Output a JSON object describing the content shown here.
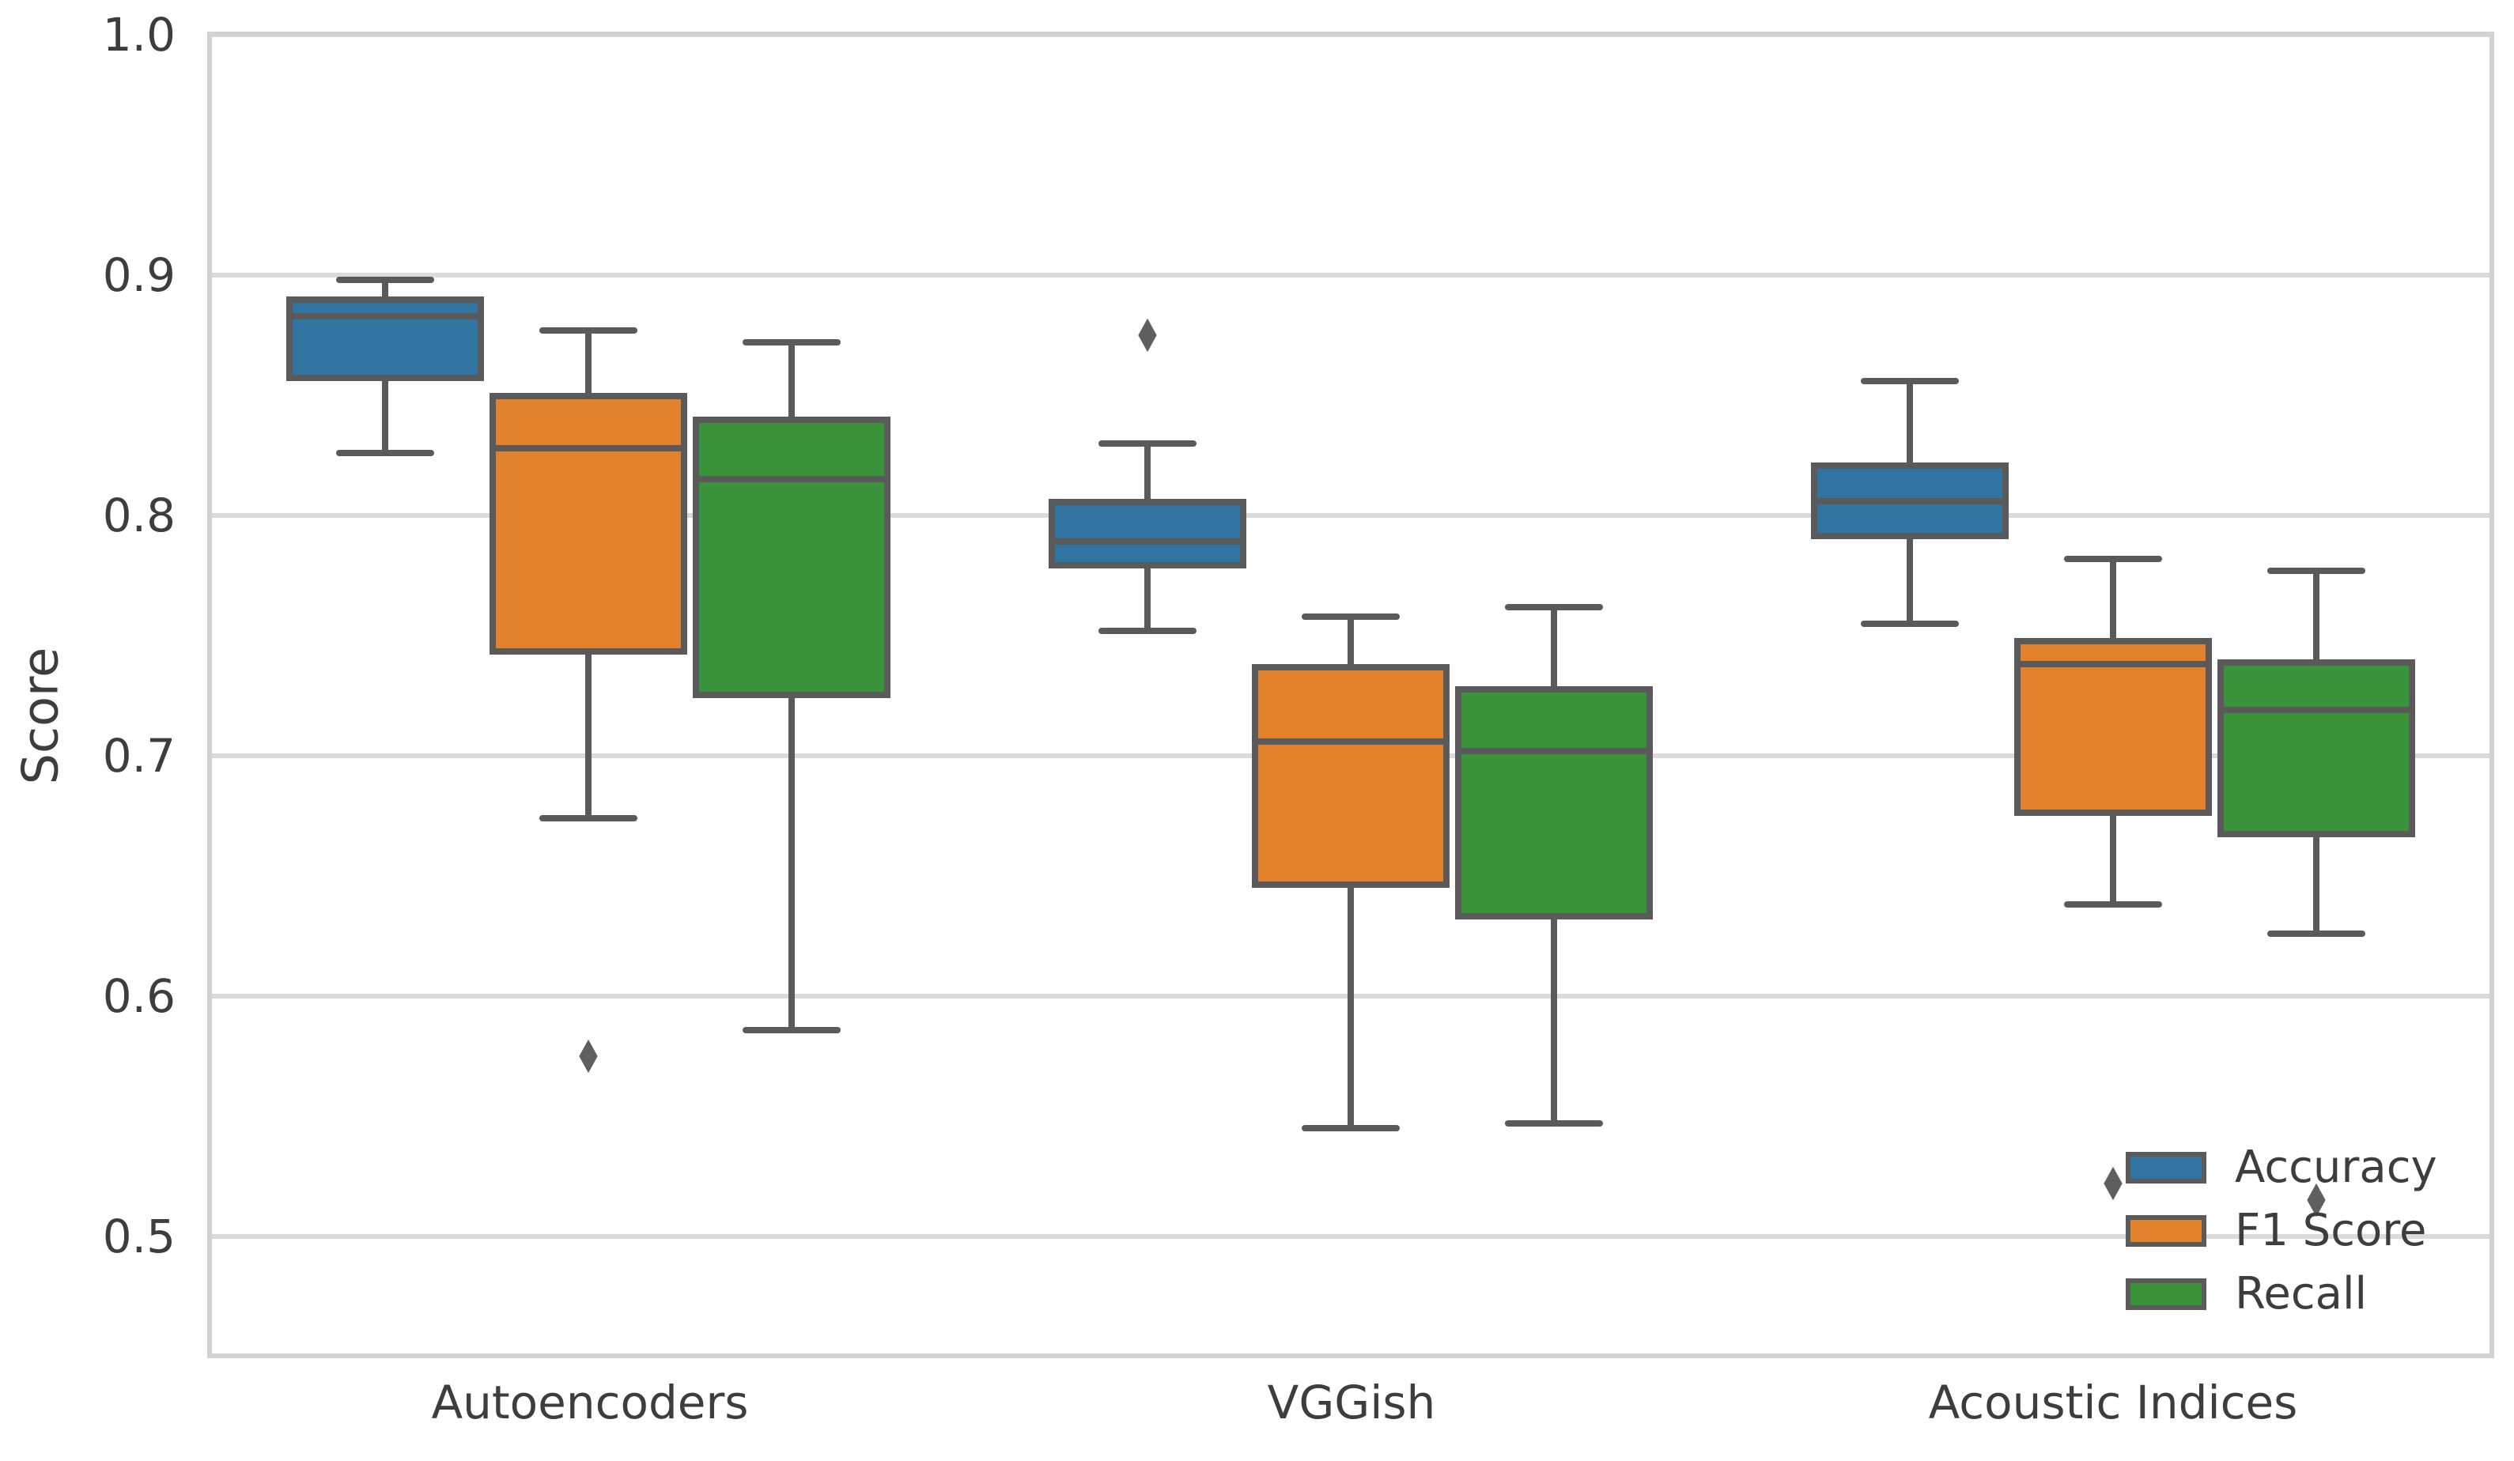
{
  "chart_data": {
    "type": "boxplot",
    "title": "",
    "xlabel": "",
    "ylabel": "Score",
    "categories": [
      "Autoencoders",
      "VGGish",
      "Acoustic Indices"
    ],
    "yticks": [
      "1.0",
      "0.9",
      "0.8",
      "0.7",
      "0.6",
      "0.5"
    ],
    "ylim": [
      0.45,
      1.0
    ],
    "grid": "horizontal",
    "legend_position": "lower right",
    "flier_marker": "diamond",
    "series": [
      {
        "name": "Accuracy",
        "color": "#3274A1"
      },
      {
        "name": "F1 Score",
        "color": "#E1812C"
      },
      {
        "name": "Recall",
        "color": "#3A923A"
      }
    ],
    "boxes": [
      {
        "category": "Autoencoders",
        "series": "Accuracy",
        "whisker_low": 0.826,
        "q1": 0.856,
        "median": 0.883,
        "q3": 0.891,
        "whisker_high": 0.898,
        "outliers": []
      },
      {
        "category": "Autoencoders",
        "series": "F1 Score",
        "whisker_low": 0.674,
        "q1": 0.742,
        "median": 0.828,
        "q3": 0.851,
        "whisker_high": 0.877,
        "outliers": [
          0.575
        ]
      },
      {
        "category": "Autoencoders",
        "series": "Recall",
        "whisker_low": 0.586,
        "q1": 0.724,
        "median": 0.815,
        "q3": 0.841,
        "whisker_high": 0.872,
        "outliers": []
      },
      {
        "category": "VGGish",
        "series": "Accuracy",
        "whisker_low": 0.752,
        "q1": 0.778,
        "median": 0.789,
        "q3": 0.807,
        "whisker_high": 0.83,
        "outliers": [
          0.875
        ]
      },
      {
        "category": "VGGish",
        "series": "F1 Score",
        "whisker_low": 0.545,
        "q1": 0.645,
        "median": 0.706,
        "q3": 0.738,
        "whisker_high": 0.758,
        "outliers": []
      },
      {
        "category": "VGGish",
        "series": "Recall",
        "whisker_low": 0.547,
        "q1": 0.632,
        "median": 0.702,
        "q3": 0.729,
        "whisker_high": 0.762,
        "outliers": []
      },
      {
        "category": "Acoustic Indices",
        "series": "Accuracy",
        "whisker_low": 0.755,
        "q1": 0.79,
        "median": 0.806,
        "q3": 0.822,
        "whisker_high": 0.856,
        "outliers": []
      },
      {
        "category": "Acoustic Indices",
        "series": "F1 Score",
        "whisker_low": 0.638,
        "q1": 0.675,
        "median": 0.738,
        "q3": 0.749,
        "whisker_high": 0.782,
        "outliers": [
          0.522
        ]
      },
      {
        "category": "Acoustic Indices",
        "series": "Recall",
        "whisker_low": 0.626,
        "q1": 0.666,
        "median": 0.719,
        "q3": 0.74,
        "whisker_high": 0.777,
        "outliers": [
          0.515
        ]
      }
    ]
  }
}
